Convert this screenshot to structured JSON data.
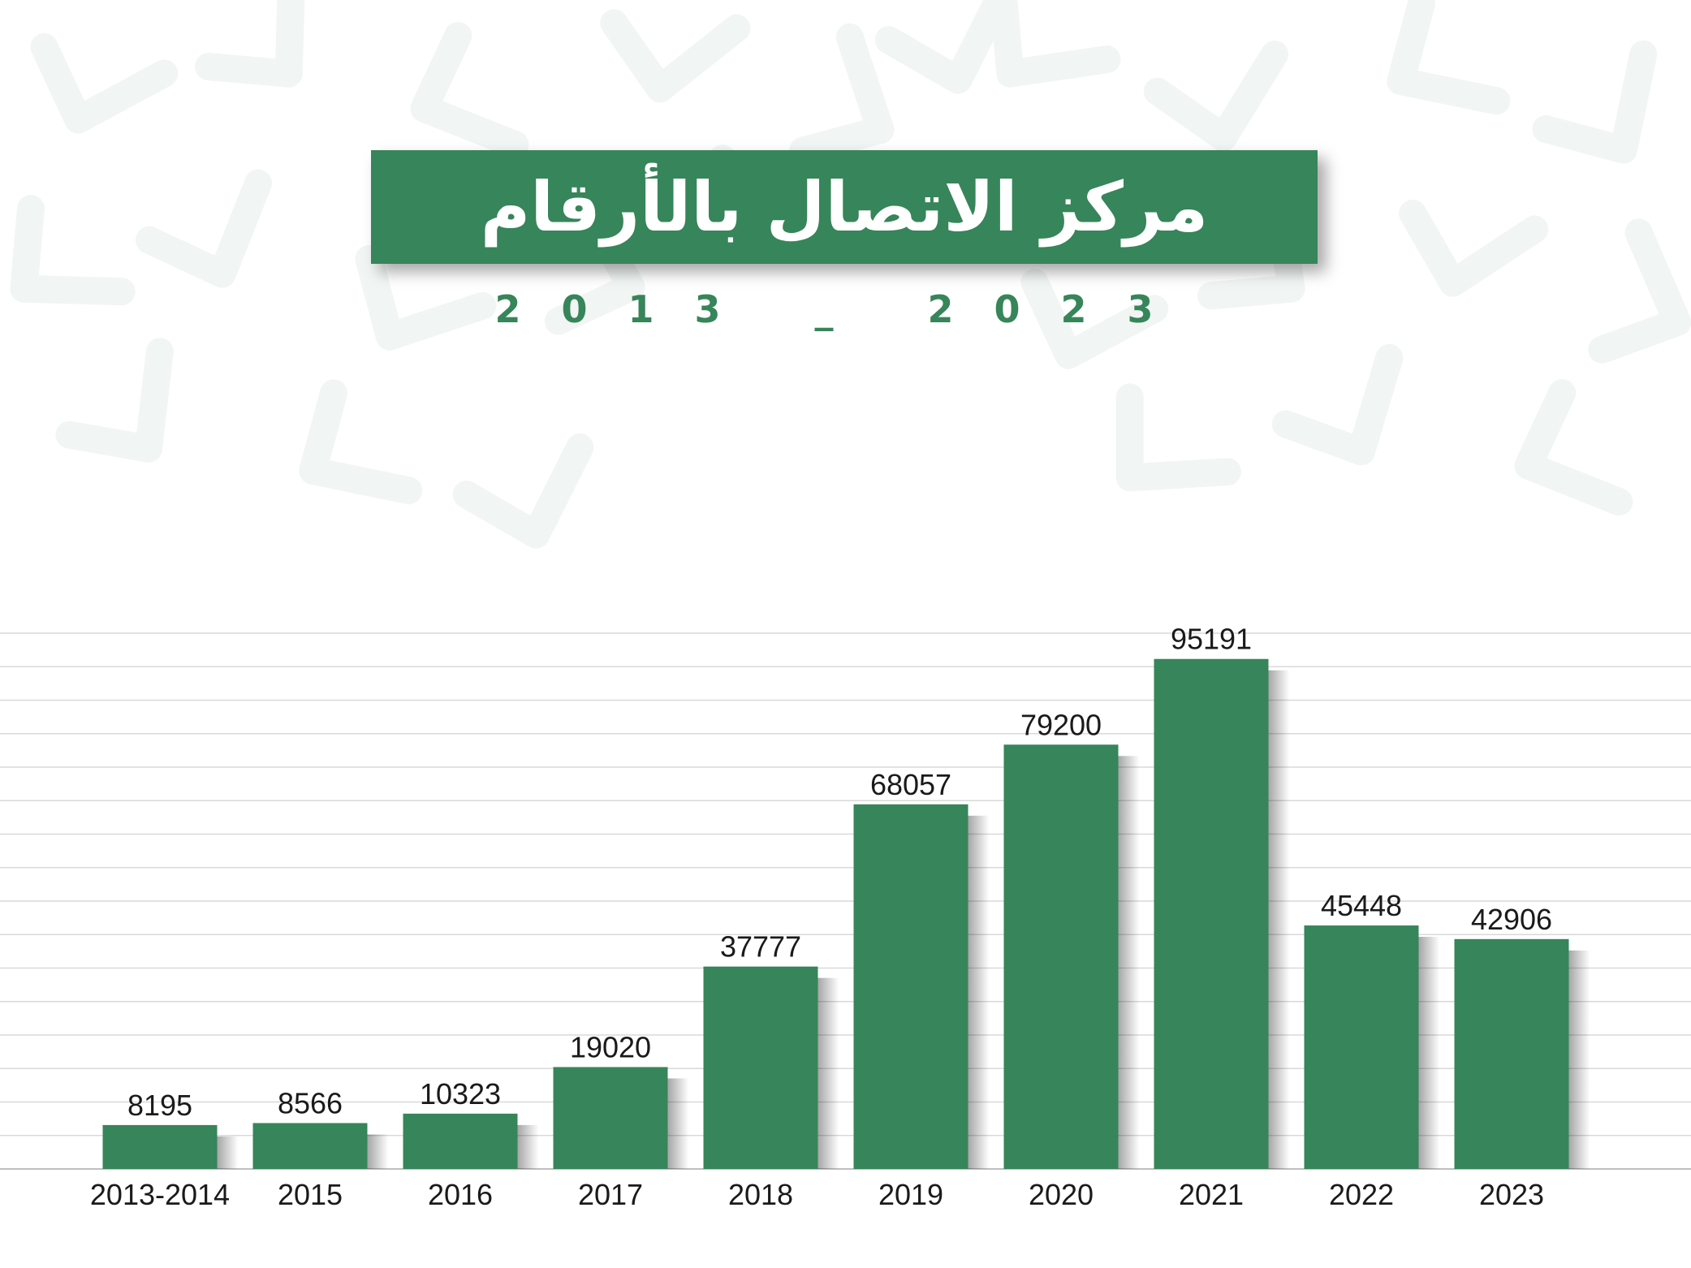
{
  "header": {
    "title": "مركز الاتصال بالأرقام",
    "subtitle": "2013 _ 2023"
  },
  "colors": {
    "accent": "#37855a",
    "pattern": "#f1f5f3",
    "gridline": "#d9d9d9"
  },
  "chart_data": {
    "type": "bar",
    "categories": [
      "2013-2014",
      "2015",
      "2016",
      "2017",
      "2018",
      "2019",
      "2020",
      "2021",
      "2022",
      "2023"
    ],
    "series": [
      {
        "values": [
          8195,
          8566,
          10323,
          19020,
          37777,
          68057,
          79200,
          95191,
          45448,
          42906
        ]
      }
    ],
    "ylim": [
      0,
      100000
    ],
    "grid": true,
    "legend": "none"
  }
}
